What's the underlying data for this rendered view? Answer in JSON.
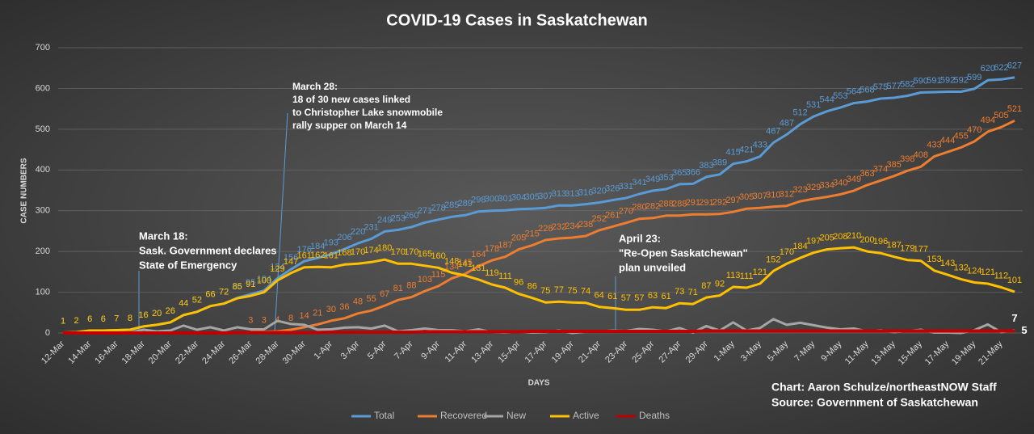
{
  "chart_data": {
    "type": "line",
    "title": "COVID-19 Cases in Saskatchewan",
    "x_label": "DAYS",
    "y_label": "CASE NUMBERS",
    "categories": [
      "12-Mar",
      null,
      "14-Mar",
      null,
      "16-Mar",
      null,
      "18-Mar",
      null,
      "20-Mar",
      null,
      "22-Mar",
      null,
      "24-Mar",
      null,
      "26-Mar",
      null,
      "28-Mar",
      null,
      "30-Mar",
      null,
      "1-Apr",
      null,
      "3-Apr",
      null,
      "5-Apr",
      null,
      "7-Apr",
      null,
      "9-Apr",
      null,
      "11-Apr",
      null,
      "13-Apr",
      null,
      "15-Apr",
      null,
      "17-Apr",
      null,
      "19-Apr",
      null,
      "21-Apr",
      null,
      "23-Apr",
      null,
      "25-Apr",
      null,
      "27-Apr",
      null,
      "29-Apr",
      null,
      "1-May",
      null,
      "3-May",
      null,
      "5-May",
      null,
      "7-May",
      null,
      "9-May",
      null,
      "11-May",
      null,
      "13-May",
      null,
      "15-May",
      null,
      "17-May",
      null,
      "19-May",
      null,
      "21-May",
      null
    ],
    "ylim": [
      0,
      700
    ],
    "yticks": [
      0,
      100,
      200,
      300,
      400,
      500,
      600,
      700
    ],
    "grid": true,
    "legend": "bottom",
    "series": [
      {
        "name": "Total",
        "color": "#5b9bd5",
        "labels": "all",
        "values": [
          1,
          2,
          6,
          6,
          7,
          8,
          16,
          20,
          26,
          44,
          52,
          66,
          72,
          86,
          95,
          104,
          134,
          156,
          176,
          184,
          193,
          206,
          220,
          231,
          249,
          253,
          260,
          271,
          278,
          285,
          289,
          298,
          300,
          301,
          304,
          305,
          307,
          313,
          313,
          316,
          320,
          326,
          331,
          341,
          349,
          353,
          365,
          366,
          383,
          389,
          415,
          421,
          433,
          467,
          487,
          512,
          531,
          544,
          553,
          564,
          568,
          575,
          577,
          582,
          590,
          591,
          592,
          592,
          599,
          620,
          622,
          627
        ]
      },
      {
        "name": "Recovered",
        "color": "#ed7d31",
        "labels": "all",
        "values": [
          null,
          null,
          null,
          null,
          null,
          null,
          null,
          null,
          null,
          null,
          null,
          null,
          null,
          null,
          3,
          3,
          4,
          8,
          14,
          21,
          30,
          36,
          48,
          55,
          67,
          81,
          88,
          103,
          115,
          134,
          145,
          164,
          178,
          187,
          205,
          215,
          228,
          232,
          234,
          238,
          252,
          261,
          270,
          280,
          282,
          288,
          288,
          291,
          291,
          292,
          297,
          305,
          307,
          310,
          312,
          323,
          329,
          334,
          340,
          349,
          363,
          374,
          385,
          398,
          408,
          433,
          444,
          455,
          470,
          494,
          505,
          521
        ]
      },
      {
        "name": "New",
        "color": "#a5a5a5",
        "labels": "last",
        "values": [
          1,
          1,
          4,
          0,
          1,
          1,
          8,
          4,
          6,
          18,
          8,
          14,
          6,
          14,
          9,
          9,
          30,
          22,
          20,
          8,
          9,
          13,
          14,
          11,
          18,
          4,
          7,
          11,
          7,
          7,
          4,
          9,
          2,
          1,
          3,
          1,
          2,
          6,
          0,
          3,
          4,
          6,
          5,
          10,
          8,
          4,
          12,
          1,
          17,
          6,
          26,
          6,
          12,
          34,
          20,
          25,
          19,
          13,
          9,
          11,
          4,
          7,
          2,
          5,
          8,
          1,
          1,
          0,
          7,
          21,
          2,
          7
        ]
      },
      {
        "name": "Active",
        "color": "#ffc000",
        "labels": "all",
        "values": [
          1,
          2,
          6,
          6,
          7,
          8,
          16,
          20,
          26,
          44,
          52,
          66,
          72,
          85,
          91,
          100,
          129,
          147,
          161,
          162,
          161,
          168,
          170,
          174,
          180,
          170,
          170,
          165,
          160,
          148,
          141,
          131,
          119,
          111,
          96,
          86,
          75,
          77,
          75,
          74,
          64,
          61,
          57,
          57,
          63,
          61,
          73,
          71,
          87,
          92,
          113,
          111,
          121,
          152,
          170,
          184,
          197,
          205,
          208,
          210,
          200,
          196,
          187,
          179,
          177,
          153,
          143,
          132,
          124,
          121,
          112,
          101
        ]
      },
      {
        "name": "Deaths",
        "color": "#c00000",
        "labels": "last",
        "values": [
          0,
          0,
          0,
          0,
          0,
          0,
          0,
          0,
          0,
          0,
          0,
          0,
          0,
          1,
          1,
          1,
          1,
          1,
          1,
          1,
          2,
          2,
          2,
          2,
          2,
          2,
          2,
          3,
          3,
          3,
          3,
          3,
          3,
          3,
          3,
          4,
          4,
          4,
          4,
          4,
          4,
          4,
          4,
          4,
          4,
          4,
          4,
          4,
          5,
          5,
          5,
          5,
          5,
          5,
          5,
          5,
          5,
          5,
          5,
          5,
          5,
          5,
          5,
          5,
          5,
          5,
          5,
          5,
          5,
          5,
          5,
          5
        ]
      }
    ],
    "annotations": [
      {
        "lines": [
          "March 18:",
          "Sask. Government declares",
          "State of Emergency"
        ]
      },
      {
        "lines": [
          "March 28:",
          "18 of 30 new cases linked",
          "to Christopher Lake snowmobile",
          "rally supper on March 14"
        ]
      },
      {
        "lines": [
          "April 23:",
          "\"Re-Open Saskatchewan\"",
          "plan unveiled"
        ]
      }
    ],
    "credit": [
      "Chart: Aaron Schulze/northeastNOW Staff",
      "Source: Government of Saskatchewan"
    ]
  }
}
